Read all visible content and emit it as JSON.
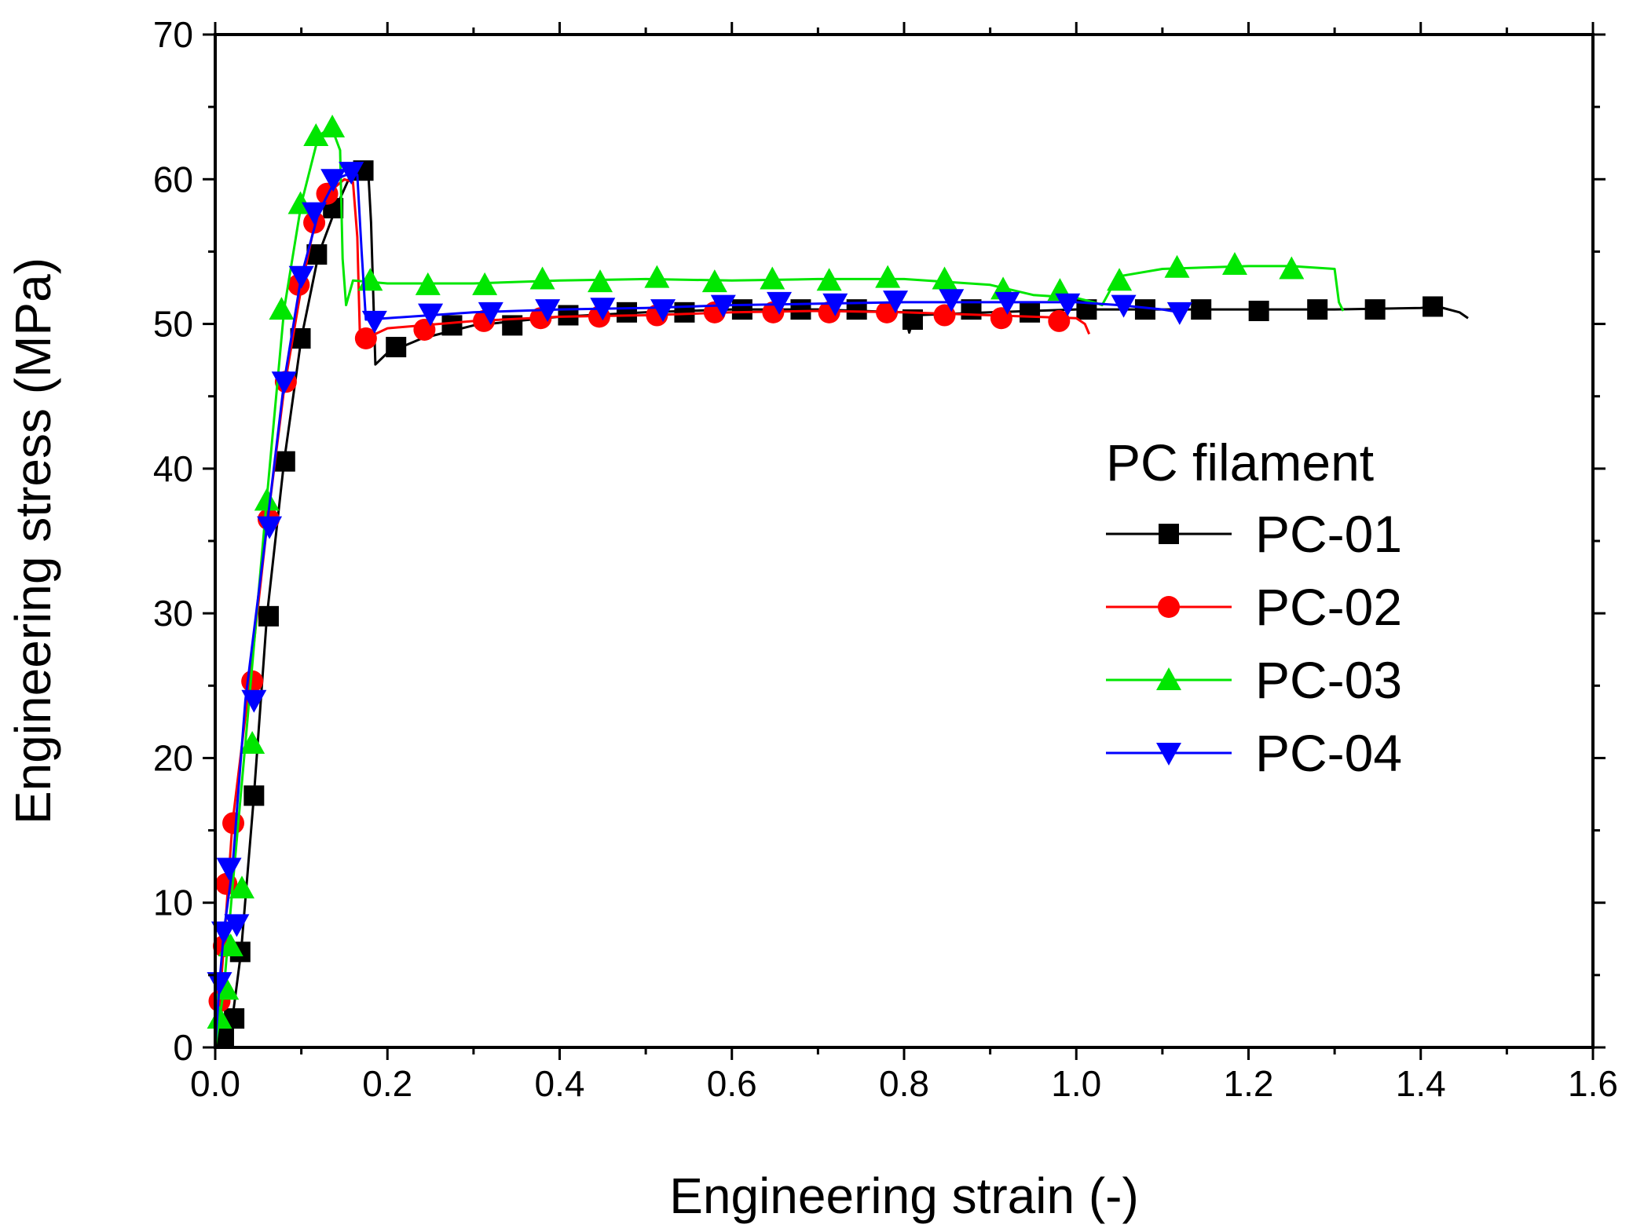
{
  "chart_data": {
    "type": "line",
    "xlabel": "Engineering strain (-)",
    "ylabel": "Engineering stress (MPa)",
    "xlim": [
      0,
      1.6
    ],
    "ylim": [
      0,
      70
    ],
    "x_ticks": [
      0.0,
      0.2,
      0.4,
      0.6,
      0.8,
      1.0,
      1.2,
      1.4,
      1.6
    ],
    "x_tick_labels": [
      "0.0",
      "0.2",
      "0.4",
      "0.6",
      "0.8",
      "1.0",
      "1.2",
      "1.4",
      "1.6"
    ],
    "y_ticks": [
      0,
      10,
      20,
      30,
      40,
      50,
      60,
      70
    ],
    "y_tick_labels": [
      "0",
      "10",
      "20",
      "30",
      "40",
      "50",
      "60",
      "70"
    ],
    "grid": false,
    "legend": {
      "title": "PC filament",
      "position": "right-middle"
    },
    "series": [
      {
        "name": "PC-01",
        "color": "#000000",
        "marker": "square",
        "x": [
          0.0,
          0.01,
          0.02,
          0.03,
          0.045,
          0.06,
          0.08,
          0.1,
          0.12,
          0.14,
          0.155,
          0.17,
          0.178,
          0.181,
          0.186,
          0.2,
          0.24,
          0.3,
          0.4,
          0.5,
          0.6,
          0.7,
          0.8,
          0.806,
          0.812,
          0.9,
          1.0,
          1.1,
          1.2,
          1.3,
          1.4,
          1.42,
          1.445,
          1.455
        ],
        "y": [
          0,
          0.6,
          2.0,
          6.6,
          17.4,
          29.8,
          40.5,
          49.0,
          54.8,
          58.0,
          60.0,
          60.6,
          60.3,
          57.0,
          47.2,
          48.0,
          49.0,
          49.9,
          50.5,
          50.8,
          51.0,
          51.0,
          50.8,
          49.4,
          50.6,
          50.8,
          51.0,
          51.0,
          51.0,
          51.0,
          51.1,
          51.2,
          50.8,
          50.4
        ],
        "markers_x": [
          0.01,
          0.022,
          0.029,
          0.045,
          0.062,
          0.081,
          0.099,
          0.118,
          0.137,
          0.172,
          0.21,
          0.275,
          0.345,
          0.41,
          0.478,
          0.545,
          0.612,
          0.68,
          0.745,
          0.81,
          0.878,
          0.946,
          1.012,
          1.08,
          1.145,
          1.212,
          1.28,
          1.347,
          1.414
        ],
        "markers_y": [
          0.6,
          2.0,
          6.6,
          17.4,
          29.8,
          40.5,
          49.0,
          54.8,
          58.0,
          60.6,
          48.4,
          49.9,
          49.9,
          50.6,
          50.8,
          50.8,
          51.0,
          51.0,
          51.0,
          50.3,
          51.0,
          50.8,
          51.0,
          51.0,
          51.0,
          50.9,
          51.0,
          51.0,
          51.2
        ]
      },
      {
        "name": "PC-02",
        "color": "#ff0000",
        "marker": "circle",
        "x": [
          0.0,
          0.005,
          0.01,
          0.02,
          0.04,
          0.06,
          0.08,
          0.1,
          0.115,
          0.13,
          0.15,
          0.16,
          0.165,
          0.168,
          0.175,
          0.2,
          0.3,
          0.4,
          0.5,
          0.6,
          0.7,
          0.8,
          0.9,
          0.95,
          1.0,
          1.01,
          1.015
        ],
        "y": [
          0,
          3.2,
          7.0,
          15.5,
          25.3,
          36.0,
          45.5,
          52.5,
          56.8,
          59.0,
          60.0,
          59.8,
          56.0,
          49.2,
          49.0,
          49.7,
          50.2,
          50.5,
          50.6,
          50.8,
          50.9,
          50.8,
          50.6,
          50.5,
          50.4,
          50.0,
          49.3
        ],
        "markers_x": [
          0.005,
          0.01,
          0.013,
          0.021,
          0.043,
          0.062,
          0.082,
          0.097,
          0.115,
          0.13,
          0.175,
          0.243,
          0.312,
          0.378,
          0.446,
          0.513,
          0.58,
          0.648,
          0.713,
          0.78,
          0.847,
          0.913,
          0.98
        ],
        "markers_y": [
          3.2,
          7.0,
          11.3,
          15.5,
          25.3,
          36.5,
          46.0,
          52.7,
          57.0,
          59.0,
          49.0,
          49.6,
          50.2,
          50.4,
          50.5,
          50.6,
          50.8,
          50.8,
          50.8,
          50.8,
          50.6,
          50.4,
          50.2
        ]
      },
      {
        "name": "PC-03",
        "color": "#00e600",
        "marker": "triangle-up",
        "x": [
          0.0,
          0.005,
          0.01,
          0.02,
          0.035,
          0.06,
          0.08,
          0.1,
          0.12,
          0.135,
          0.145,
          0.148,
          0.152,
          0.16,
          0.2,
          0.3,
          0.4,
          0.5,
          0.6,
          0.7,
          0.8,
          0.9,
          0.95,
          1.0,
          1.02,
          1.03,
          1.04,
          1.05,
          1.1,
          1.2,
          1.25,
          1.3,
          1.305,
          1.31
        ],
        "y": [
          0,
          2.0,
          4.0,
          11.0,
          21.0,
          38.0,
          51.0,
          58.3,
          63.0,
          63.6,
          62.0,
          54.5,
          51.3,
          53.0,
          52.8,
          52.8,
          53.0,
          53.1,
          53.0,
          53.1,
          53.1,
          52.7,
          52.0,
          51.8,
          51.5,
          51.3,
          52.4,
          53.3,
          53.8,
          54.0,
          54.0,
          53.8,
          51.5,
          50.9
        ],
        "markers_x": [
          0.005,
          0.013,
          0.018,
          0.031,
          0.043,
          0.06,
          0.077,
          0.099,
          0.117,
          0.136,
          0.18,
          0.247,
          0.313,
          0.38,
          0.447,
          0.513,
          0.58,
          0.647,
          0.713,
          0.781,
          0.847,
          0.915,
          0.981,
          1.05,
          1.117,
          1.184,
          1.25
        ],
        "markers_y": [
          2.0,
          4.0,
          7.0,
          11.0,
          21.0,
          37.8,
          51.0,
          58.3,
          63.0,
          63.6,
          53.0,
          52.7,
          52.7,
          53.1,
          52.9,
          53.2,
          52.9,
          53.1,
          53.0,
          53.2,
          53.1,
          52.4,
          52.3,
          53.0,
          53.9,
          54.1,
          53.8
        ]
      },
      {
        "name": "PC-04",
        "color": "#0000ff",
        "marker": "triangle-down",
        "x": [
          0.0,
          0.005,
          0.01,
          0.02,
          0.035,
          0.06,
          0.08,
          0.1,
          0.12,
          0.14,
          0.16,
          0.165,
          0.17,
          0.175,
          0.2,
          0.3,
          0.4,
          0.5,
          0.6,
          0.7,
          0.8,
          0.9,
          1.0,
          1.05,
          1.1,
          1.12
        ],
        "y": [
          0,
          4.5,
          8.0,
          12.4,
          24.0,
          36.0,
          46.0,
          53.3,
          57.7,
          60.0,
          60.5,
          60.3,
          55.0,
          50.3,
          50.4,
          50.8,
          51.0,
          51.1,
          51.3,
          51.4,
          51.5,
          51.5,
          51.5,
          51.3,
          51.0,
          50.8
        ],
        "markers_x": [
          0.005,
          0.01,
          0.016,
          0.025,
          0.045,
          0.063,
          0.08,
          0.1,
          0.115,
          0.137,
          0.158,
          0.185,
          0.25,
          0.32,
          0.386,
          0.45,
          0.52,
          0.59,
          0.655,
          0.72,
          0.79,
          0.855,
          0.92,
          0.99,
          1.055,
          1.12
        ],
        "markers_y": [
          4.5,
          8.0,
          12.4,
          8.5,
          24.0,
          36.0,
          46.0,
          53.3,
          57.7,
          60.0,
          60.5,
          50.2,
          50.7,
          50.8,
          51.0,
          51.1,
          51.0,
          51.3,
          51.5,
          51.4,
          51.6,
          51.7,
          51.5,
          51.4,
          51.3,
          50.8
        ]
      }
    ]
  }
}
